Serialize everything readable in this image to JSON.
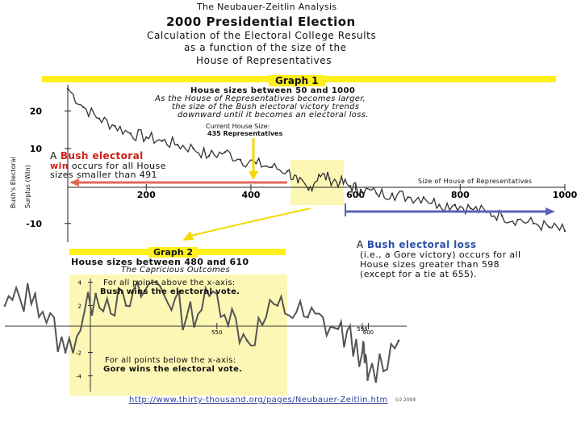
{
  "header": {
    "line1": "The Neubauer-Zeitlin Analysis",
    "line2": "2000 Presidential Election",
    "line3": "Calculation of the Electoral College Results",
    "line4": "as a function of the size of the",
    "line5": "House of Representatives"
  },
  "graph1": {
    "title": "Graph 1",
    "subtitle": "House sizes between 50 and 1000",
    "desc1": "As the House of Representatives becomes larger,",
    "desc2": "the size of the Bush electoral victory trends",
    "desc3": "downward until it becomes an electoral loss.",
    "current_label1": "Current House Size:",
    "current_label2": "435 Representatives",
    "bush_win_1a": "A ",
    "bush_win_1b": "Bush electoral",
    "bush_win_2a": "win",
    "bush_win_2b": " occurs for all House",
    "bush_win_3": "sizes smaller than 491",
    "ylabel1": "Bush's Electoral",
    "ylabel2": "Surplus (Win)",
    "xlabel": "Size of House of Representatives",
    "gore_1a": "A ",
    "gore_1b": "Bush electoral loss",
    "gore_2": "(i.e., a Gore victory) occurs for all",
    "gore_3": "House sizes greater than 598",
    "gore_4": "(except for a tie at 655).",
    "x_ticks": [
      "200",
      "400",
      "600",
      "800",
      "1000"
    ],
    "y_ticks": [
      "20",
      "10",
      "-10"
    ]
  },
  "graph2": {
    "title": "Graph 2",
    "subtitle": "House sizes between 480 and 610",
    "subtitle2": "The Capricious Outcomes",
    "above1": "For all points above the x-axis:",
    "above2": "Bush wins the electoral vote.",
    "below1": "For all points below the x-axis:",
    "below2": "Gore wins the electoral vote.",
    "x_ticks": [
      "550",
      "600",
      "598"
    ],
    "y_ticks": [
      "4",
      "2",
      "-2",
      "-4"
    ]
  },
  "footer": {
    "url": "http://www.thirty-thousand.org/pages/Neubauer-Zeitlin.htm",
    "note": "(c) 2004"
  },
  "colors": {
    "highlight_yellow": "#ffef1a",
    "panel_yellow": "#fdf7b5",
    "bush_red": "#d01f14",
    "gore_blue": "#2d4fa8",
    "arrow_red": "#e06a5a",
    "arrow_blue": "#5a63b5"
  },
  "chart_data": [
    {
      "type": "line",
      "title": "Graph 1",
      "xlabel": "Size of House of Representatives",
      "ylabel": "Bush's Electoral Surplus (Win)",
      "xlim": [
        50,
        1000
      ],
      "ylim": [
        -15,
        27
      ],
      "x": [
        50,
        80,
        110,
        140,
        170,
        200,
        230,
        260,
        290,
        320,
        350,
        380,
        410,
        440,
        470,
        490,
        510,
        530,
        550,
        570,
        590,
        610,
        640,
        670,
        700,
        730,
        760,
        790,
        820,
        850,
        880,
        910,
        940,
        970,
        1000
      ],
      "series": [
        {
          "name": "",
          "values": [
            26,
            21,
            18,
            16,
            14,
            13,
            12,
            11,
            10,
            8,
            9,
            7,
            6,
            5,
            4,
            1,
            -1,
            3,
            2,
            1,
            0,
            -1,
            -2,
            -2,
            -3,
            -3,
            -5,
            -5,
            -6,
            -7,
            -8,
            -9,
            -10,
            -11,
            -12
          ]
        }
      ],
      "annotations": [
        "Current House Size: 435 Representatives"
      ]
    },
    {
      "type": "line",
      "title": "Graph 2",
      "xlim": [
        480,
        610
      ],
      "ylim": [
        -5,
        5
      ],
      "x": [
        480,
        490,
        500,
        510,
        520,
        530,
        540,
        550,
        560,
        570,
        580,
        590,
        598,
        600,
        610
      ],
      "series": [
        {
          "name": "",
          "values": [
            2,
            3,
            -2,
            3,
            2,
            4,
            1,
            3,
            -1,
            2,
            1,
            0,
            -2,
            -4,
            -1
          ]
        }
      ]
    }
  ]
}
